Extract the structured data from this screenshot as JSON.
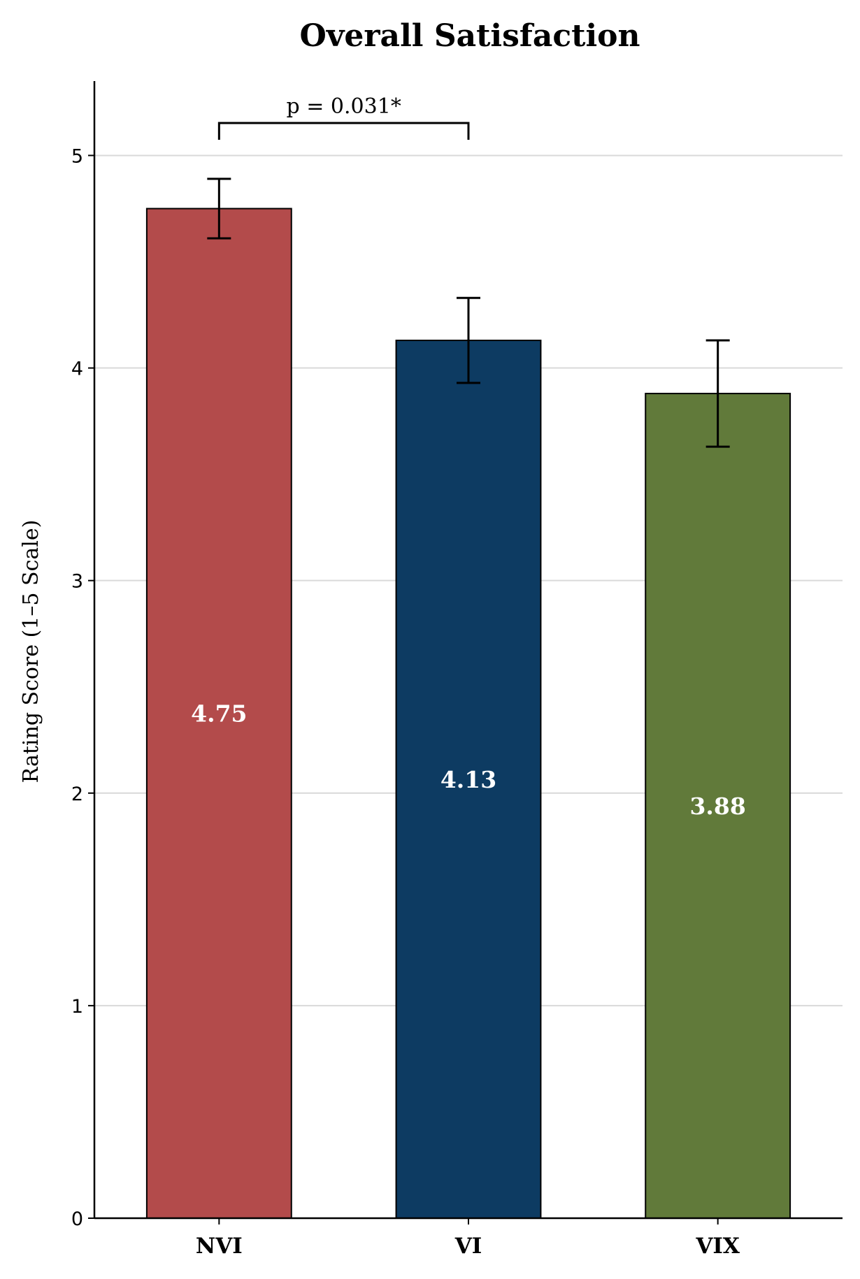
{
  "chart_data": {
    "type": "bar",
    "title": "Overall Satisfaction",
    "xlabel": "",
    "ylabel": "Rating Score (1–5 Scale)",
    "categories": [
      "NVI",
      "VI",
      "VIX"
    ],
    "values": [
      4.75,
      4.13,
      3.88
    ],
    "value_labels": [
      "4.75",
      "4.13",
      "3.88"
    ],
    "error": [
      0.14,
      0.2,
      0.25
    ],
    "colors": [
      "#b34b4b",
      "#0d3b62",
      "#617a3a"
    ],
    "ylim": [
      0,
      5.35
    ],
    "yticks": [
      0,
      1,
      2,
      3,
      4,
      5
    ],
    "ytick_labels": [
      "0",
      "1",
      "2",
      "3",
      "4",
      "5"
    ],
    "grid": "y",
    "significance": {
      "from": "NVI",
      "to": "VI",
      "label": "p = 0.031*"
    }
  }
}
